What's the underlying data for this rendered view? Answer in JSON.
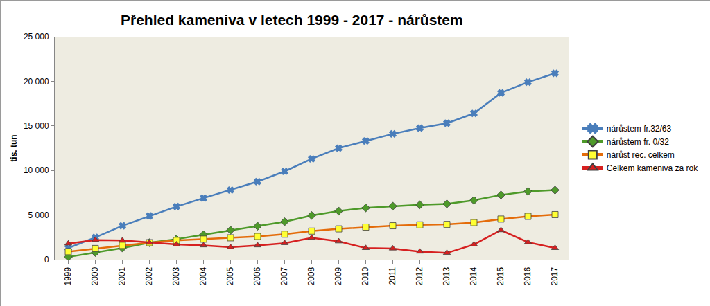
{
  "chart_data": {
    "type": "line",
    "title": "Přehled kameniva v letech 1999 - 2017 - nárůstem",
    "y_label": "tis. tun",
    "categories": [
      "1999",
      "2000",
      "2001",
      "2002",
      "2003",
      "2004",
      "2005",
      "2006",
      "2007",
      "2008",
      "2009",
      "2010",
      "2011",
      "2012",
      "2013",
      "2014",
      "2015",
      "2016",
      "2017"
    ],
    "series": [
      {
        "name": "nárůstem fr.32/63",
        "color": "#4a7ebb",
        "marker": "x",
        "values": [
          1300,
          2500,
          3800,
          4900,
          5950,
          6900,
          7800,
          8750,
          9900,
          11300,
          12500,
          13300,
          14100,
          14750,
          15300,
          16400,
          18700,
          19900,
          20900
        ]
      },
      {
        "name": "nárůstem fr. 0/32",
        "color": "#4e9a2a",
        "marker": "diamond",
        "values": [
          300,
          800,
          1300,
          1900,
          2300,
          2800,
          3300,
          3750,
          4250,
          4950,
          5450,
          5800,
          6000,
          6150,
          6250,
          6650,
          7250,
          7650,
          7800
        ]
      },
      {
        "name": "nárůst rec. celkem",
        "color": "#e46c0a",
        "marker": "square",
        "values": [
          900,
          1250,
          1600,
          1900,
          2150,
          2300,
          2450,
          2600,
          2850,
          3200,
          3450,
          3650,
          3800,
          3900,
          3950,
          4150,
          4550,
          4850,
          5050
        ]
      },
      {
        "name": "Celkem kameniva za rok",
        "color": "#d62020",
        "marker": "triangle-up",
        "values": [
          1800,
          2200,
          2150,
          1900,
          1700,
          1600,
          1400,
          1600,
          1850,
          2450,
          2050,
          1300,
          1250,
          900,
          750,
          1700,
          3300,
          1950,
          1300
        ]
      }
    ],
    "ylim": [
      0,
      25000
    ],
    "yticks": [
      0,
      {
        "value": 5000,
        "label": "5 000"
      },
      {
        "value": 10000,
        "label": "10 000"
      },
      {
        "value": 15000,
        "label": "15 000"
      },
      {
        "value": 20000,
        "label": "20 000"
      },
      {
        "value": 25000,
        "label": "25 000"
      }
    ],
    "grid": false,
    "legend": "right"
  }
}
